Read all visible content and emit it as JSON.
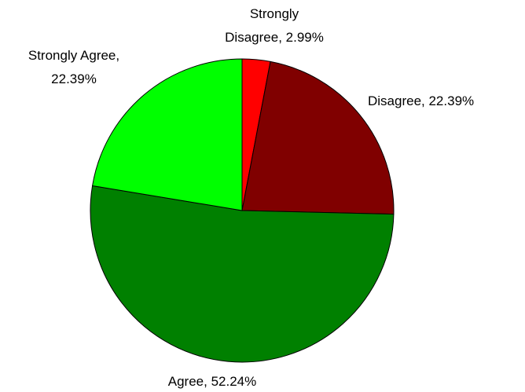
{
  "chart_data": {
    "type": "pie",
    "title": "",
    "slices": [
      {
        "label": "Strongly Disagree",
        "value": 2.99,
        "display": "2.99%",
        "color": "#FF0000"
      },
      {
        "label": "Disagree",
        "value": 22.39,
        "display": "22.39%",
        "color": "#800000"
      },
      {
        "label": "Agree",
        "value": 52.24,
        "display": "52.24%",
        "color": "#008000"
      },
      {
        "label": "Strongly Agree",
        "value": 22.39,
        "display": "22.39%",
        "color": "#00FF00"
      }
    ],
    "start_angle": "12 o'clock",
    "direction": "clockwise",
    "legend": "none"
  },
  "labels": {
    "strongly_disagree_line1": "Strongly",
    "strongly_disagree_line2": "Disagree, 2.99%",
    "disagree": "Disagree, 22.39%",
    "agree": "Agree, 52.24%",
    "strongly_agree_line1": "Strongly Agree,",
    "strongly_agree_line2": "22.39%"
  }
}
